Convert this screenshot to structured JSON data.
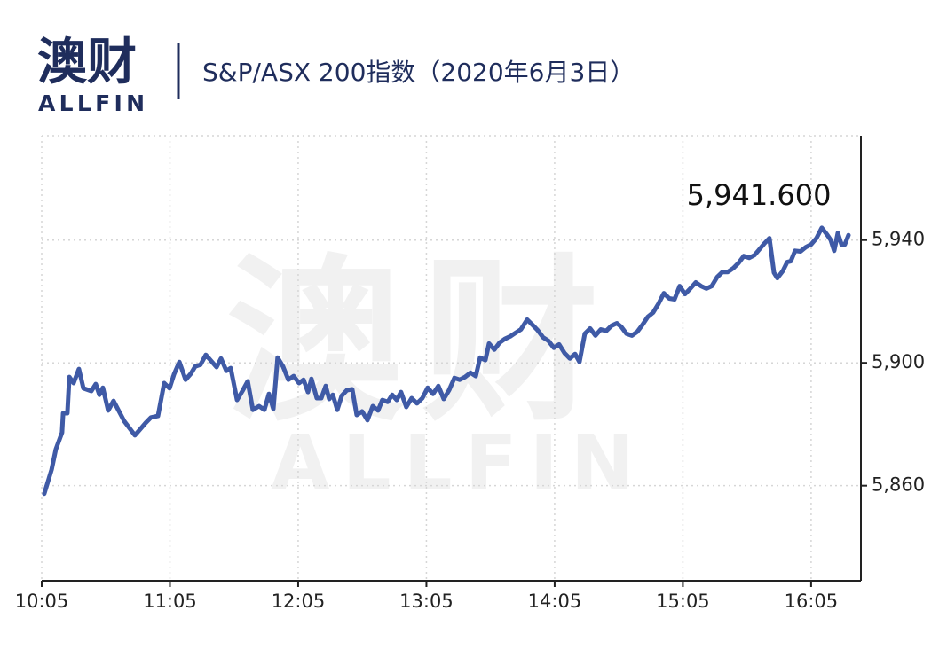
{
  "logo": {
    "name": "澳财",
    "subname": "ALLFIN"
  },
  "watermark": {
    "name": "澳财",
    "subname": "ALLFIN"
  },
  "chart_data": {
    "type": "line",
    "title": "S&P/ASX 200指数（2020年6月3日）",
    "annotation": "5,941.600",
    "color": "#3f5aa6",
    "grid": true,
    "y_axis_side": "right",
    "xlim": [
      605,
      988.3
    ],
    "ylim": [
      5829,
      5974
    ],
    "xticks": [
      {
        "value": 605,
        "label": "10:05"
      },
      {
        "value": 665,
        "label": "11:05"
      },
      {
        "value": 725,
        "label": "12:05"
      },
      {
        "value": 785,
        "label": "13:05"
      },
      {
        "value": 845,
        "label": "14:05"
      },
      {
        "value": 905,
        "label": "15:05"
      },
      {
        "value": 965,
        "label": "16:05"
      }
    ],
    "yticks": [
      {
        "value": 5860,
        "label": "5,860"
      },
      {
        "value": 5900,
        "label": "5,900"
      },
      {
        "value": 5940,
        "label": "5,940"
      }
    ],
    "x": [
      606.2,
      609.6,
      611.6,
      614.5,
      615.0,
      617.0,
      617.9,
      619.9,
      622.4,
      624.5,
      628.2,
      630.3,
      632.0,
      633.6,
      636.1,
      638.6,
      643.6,
      648.6,
      651.1,
      653.6,
      656.1,
      659.4,
      662.3,
      664.8,
      666.9,
      669.4,
      672.3,
      674.8,
      676.8,
      679.3,
      681.8,
      684.3,
      686.8,
      688.9,
      691.4,
      693.4,
      696.4,
      698.9,
      701.4,
      703.8,
      706.7,
      709.2,
      711.3,
      713.4,
      715.4,
      717.9,
      720.4,
      722.9,
      725.4,
      727.5,
      729.6,
      731.2,
      733.7,
      735.8,
      737.9,
      739.5,
      741.2,
      743.3,
      745.4,
      747.8,
      750.3,
      752.4,
      754.9,
      757.4,
      759.9,
      762.4,
      764.4,
      766.9,
      769.0,
      771.1,
      773.1,
      775.6,
      778.1,
      780.6,
      783.1,
      785.6,
      788.1,
      790.6,
      793.1,
      795.6,
      798.1,
      800.6,
      803.1,
      805.6,
      808.1,
      810.1,
      812.6,
      814.3,
      816.8,
      819.3,
      821.7,
      824.2,
      826.7,
      829.2,
      832.1,
      834.6,
      837.1,
      839.6,
      842.1,
      844.6,
      847.1,
      849.6,
      852.1,
      854.6,
      856.6,
      859.1,
      861.6,
      864.1,
      866.6,
      869.1,
      871.6,
      874.1,
      876.1,
      878.6,
      881.1,
      883.6,
      886.1,
      888.6,
      891.1,
      893.6,
      896.1,
      898.6,
      901.1,
      903.5,
      906.0,
      908.5,
      911.0,
      913.5,
      916.0,
      918.5,
      921.0,
      923.5,
      926.0,
      928.5,
      931.0,
      933.5,
      936.0,
      938.5,
      940.9,
      943.4,
      945.5,
      947.6,
      949.2,
      951.7,
      953.8,
      955.5,
      957.5,
      960.0,
      962.5,
      965.0,
      967.5,
      970.0,
      972.5,
      974.2,
      975.8,
      977.5,
      979.2,
      980.8,
      982.5
    ],
    "series": [
      {
        "name": "S&P/ASX 200",
        "color": "#3f5aa6",
        "values": [
          5857.4,
          5865.2,
          5871.8,
          5877.3,
          5883.6,
          5883.6,
          5895.4,
          5893.4,
          5898.0,
          5891.7,
          5890.8,
          5893.1,
          5889.6,
          5891.9,
          5884.5,
          5887.6,
          5881.0,
          5876.4,
          5878.4,
          5880.4,
          5882.2,
          5882.7,
          5893.4,
          5891.7,
          5896.3,
          5900.3,
          5894.5,
          5896.5,
          5898.8,
          5899.4,
          5902.6,
          5900.6,
          5898.6,
          5901.4,
          5897.4,
          5898.3,
          5887.9,
          5890.8,
          5894.0,
          5884.7,
          5885.9,
          5884.7,
          5889.9,
          5885.0,
          5901.7,
          5898.8,
          5894.5,
          5895.7,
          5893.4,
          5894.5,
          5890.5,
          5894.8,
          5888.5,
          5888.5,
          5892.5,
          5888.2,
          5889.6,
          5884.7,
          5889.3,
          5891.1,
          5891.4,
          5883.0,
          5884.2,
          5881.3,
          5885.9,
          5884.5,
          5887.9,
          5887.3,
          5889.6,
          5887.9,
          5890.5,
          5885.6,
          5888.5,
          5886.8,
          5888.5,
          5891.9,
          5889.9,
          5892.5,
          5888.2,
          5891.1,
          5895.1,
          5894.5,
          5895.4,
          5896.8,
          5895.7,
          5901.7,
          5900.9,
          5906.3,
          5904.3,
          5906.6,
          5907.8,
          5908.6,
          5909.8,
          5910.9,
          5914.1,
          5912.4,
          5910.6,
          5908.3,
          5907.2,
          5904.9,
          5906.0,
          5903.2,
          5901.4,
          5902.9,
          5900.3,
          5909.5,
          5911.2,
          5908.9,
          5910.9,
          5910.4,
          5912.1,
          5912.9,
          5911.8,
          5909.5,
          5908.9,
          5910.1,
          5912.4,
          5915.0,
          5916.4,
          5919.3,
          5922.7,
          5921.0,
          5920.7,
          5925.0,
          5922.4,
          5924.2,
          5926.2,
          5925.0,
          5924.2,
          5925.0,
          5927.9,
          5929.6,
          5929.6,
          5930.8,
          5932.5,
          5934.8,
          5934.2,
          5935.1,
          5937.1,
          5939.1,
          5940.6,
          5929.4,
          5927.6,
          5929.9,
          5932.8,
          5933.1,
          5936.5,
          5936.3,
          5937.7,
          5938.6,
          5940.6,
          5944.0,
          5941.7,
          5940.0,
          5936.5,
          5942.3,
          5938.6,
          5938.6,
          5941.6
        ]
      }
    ]
  }
}
